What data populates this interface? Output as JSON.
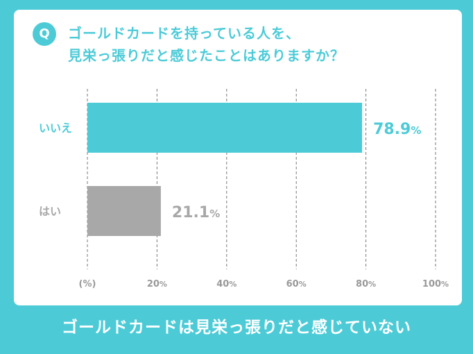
{
  "question": {
    "badge": "Q",
    "line1": "ゴールドカードを持っている人を、",
    "line2": "見栄っ張りだと感じたことはありますか？"
  },
  "chart_data": {
    "type": "bar",
    "orientation": "horizontal",
    "categories": [
      "いいえ",
      "はい"
    ],
    "values": [
      78.9,
      21.1
    ],
    "value_labels": [
      "78.9",
      "21.1"
    ],
    "value_unit": "%",
    "bar_colors": [
      "#4ccbd7",
      "#a8a8a8"
    ],
    "xlim": [
      0,
      100
    ],
    "x_ticks": [
      20,
      40,
      60,
      80,
      100
    ],
    "x_unit_label": "(%)",
    "grid": true
  },
  "footer": {
    "text": "ゴールドカードは見栄っ張りだと感じていない"
  },
  "colors": {
    "accent": "#4ccbd7",
    "secondary": "#a8a8a8",
    "axis_text": "#999999"
  }
}
